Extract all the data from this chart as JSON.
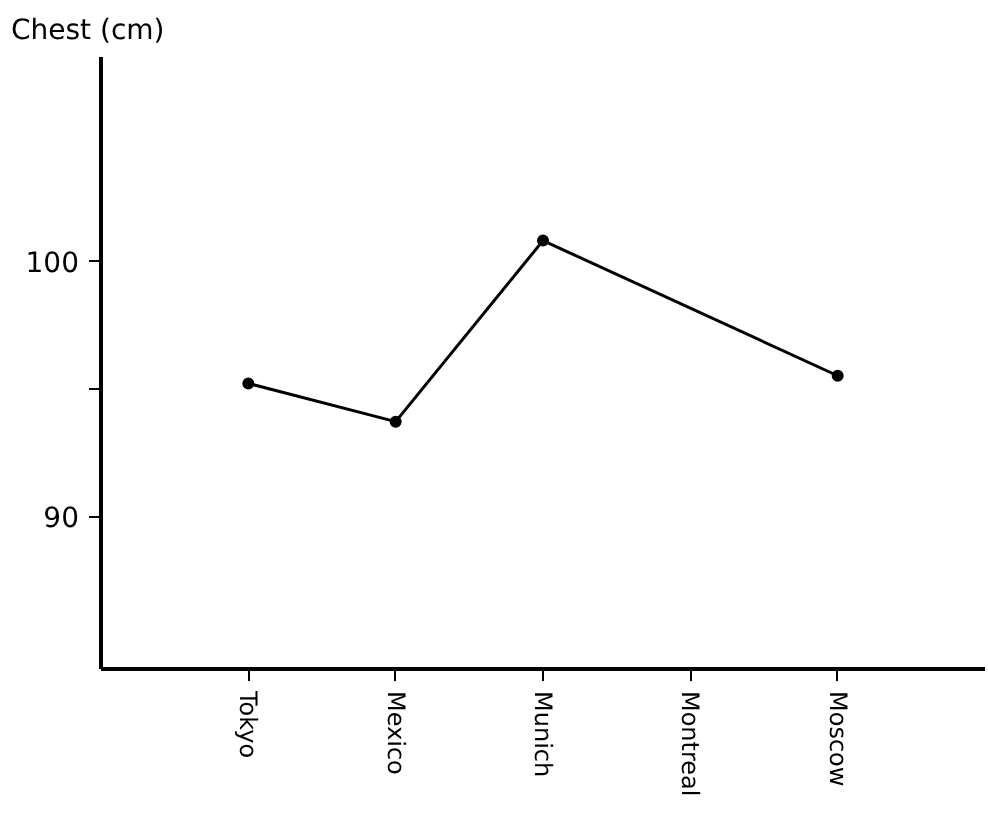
{
  "chart_data": {
    "type": "line",
    "ylabel": "Chest (cm)",
    "categories": [
      "Tokyo",
      "Mexico",
      "Munich",
      "Montreal",
      "Moscow"
    ],
    "series": [
      {
        "color": "#000000",
        "x": [
          "Tokyo",
          "Mexico",
          "Munich",
          "Moscow"
        ],
        "values": [
          95.2,
          93.7,
          100.8,
          95.5
        ]
      }
    ],
    "ylim": [
      84,
      108
    ],
    "yticks": [
      90,
      {
        "value": 95,
        "label": null
      },
      100
    ],
    "marker": "circle",
    "line_style": "solid",
    "grid": false
  }
}
